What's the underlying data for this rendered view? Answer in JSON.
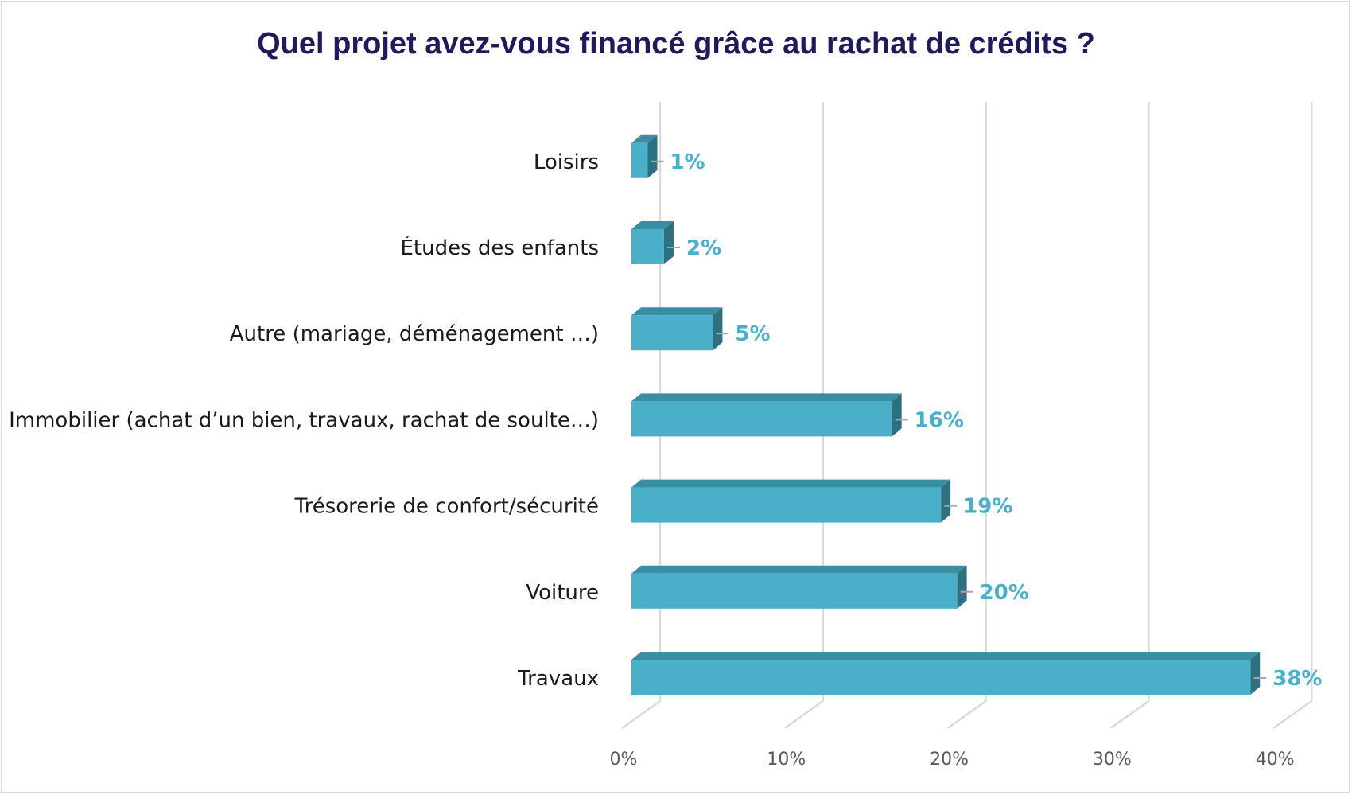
{
  "chart_data": {
    "type": "bar",
    "orientation": "horizontal",
    "title": "Quel projet avez-vous financé grâce au rachat de crédits ?",
    "xlabel": "",
    "ylabel": "",
    "categories": [
      "Travaux",
      "Voiture",
      "Trésorerie de confort/sécurité",
      "Immobilier (achat d’un bien, travaux, rachat de soulte…)",
      "Autre (mariage, déménagement …)",
      "Études des enfants",
      "Loisirs"
    ],
    "values": [
      38,
      20,
      19,
      16,
      5,
      2,
      1
    ],
    "data_labels": [
      "38%",
      "20%",
      "19%",
      "16%",
      "5%",
      "2%",
      "1%"
    ],
    "xlim": [
      0,
      40
    ],
    "xticks": [
      0,
      10,
      20,
      30,
      40
    ],
    "xtick_labels": [
      "0%",
      "10%",
      "20%",
      "30%",
      "40%"
    ],
    "grid": true,
    "style_3d": true,
    "colors": {
      "bar_front": "#4aafc8",
      "bar_top": "#3a8ea3",
      "bar_side": "#2e6f80",
      "data_label": "#4aafc8",
      "title": "#1f1a5c",
      "grid": "#d9d9d9"
    }
  }
}
